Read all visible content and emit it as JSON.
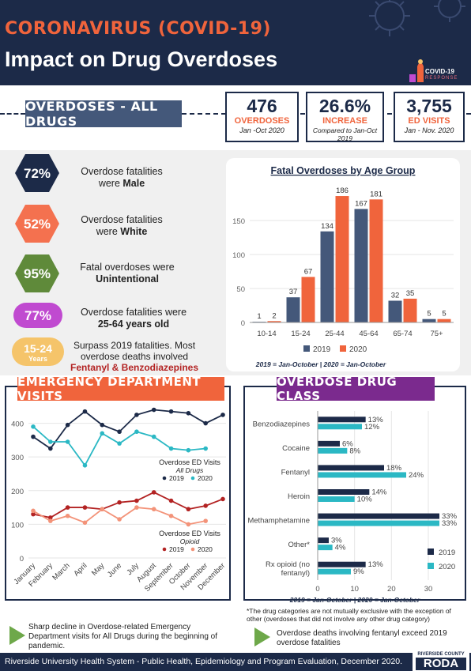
{
  "header": {
    "kicker": "CORONAVIRUS (COVID-19)",
    "title": "Impact on Drug Overdoses",
    "logo_text": "COVID-19",
    "logo_sub": "RESPONSE"
  },
  "summary": {
    "section_label": "OVERDOSES - ALL DRUGS",
    "stats": [
      {
        "value": "476",
        "label": "OVERDOSES",
        "sub": "Jan -Oct 2020"
      },
      {
        "value": "26.6%",
        "label": "INCREASE",
        "sub": "Compared to Jan-Oct 2019"
      },
      {
        "value": "3,755",
        "label": "ED VISITS",
        "sub": "Jan -  Nov. 2020"
      }
    ]
  },
  "facts": [
    {
      "pct": "72%",
      "line1": "Overdose fatalities",
      "line2a": "were ",
      "line2b": "Male",
      "color": "#1c2a48"
    },
    {
      "pct": "52%",
      "line1": "Overdose fatalities",
      "line2a": "were ",
      "line2b": "White",
      "color": "#f4714f"
    },
    {
      "pct": "95%",
      "line1": "Fatal overdoses were",
      "line2a": "",
      "line2b": "Unintentional",
      "color": "#5f8a3a"
    },
    {
      "pct": "77%",
      "line1": "Overdose fatalities were",
      "line2a": "",
      "line2b": "25-64 years old",
      "color": "#c04ad0"
    },
    {
      "pct": "15-24",
      "pct_sub": "Years",
      "line1": "Surpass 2019 fatalities. Most",
      "line2a": "overdose deaths involved",
      "line2b": "Fentanyl & Benzodiazepines",
      "color": "#f5c46a"
    }
  ],
  "age_chart": {
    "title": "Fatal Overdoses by Age Group",
    "note": "2019 = Jan-October | 2020 = Jan-October"
  },
  "ed_section": {
    "label": "EMERGENCY DEPARTMENT VISITS",
    "legend_all_title": "Overdose ED Visits",
    "legend_all_sub": "All Drugs",
    "legend_op_title": "Overdose ED Visits",
    "legend_op_sub": "Opioid",
    "note": "Sharp decline in Overdose-related Emergency Department visits for All Drugs during the beginning of pandemic."
  },
  "drug_section": {
    "label": "OVERDOSE DRUG CLASS",
    "note_line": "2019 = Jan-October | 2020 = Jan-October",
    "footnote": "*The drug categories are not mutually exclusive with the exception of other (overdoses that did not involve any other drug category)",
    "note": "Overdose deaths involving fentanyl exceed 2019 overdose fatalities"
  },
  "footer": {
    "text": "Riverside University Health System - Public Health, Epidemiology and Program Evaluation, December 2020.",
    "logo_top": "RIVERSIDE COUNTY",
    "logo_main": "RODA"
  },
  "colors": {
    "navy": "#1c2a48",
    "slate": "#44587a",
    "orange": "#f0643c",
    "teal": "#2bb8c4",
    "dark_red": "#b32323",
    "salmon": "#f39379",
    "green": "#6ea84a",
    "purple": "#7b2a8e"
  },
  "chart_data": [
    {
      "type": "bar",
      "title": "Fatal Overdoses by Age Group",
      "categories": [
        "10-14",
        "15-24",
        "25-44",
        "45-64",
        "65-74",
        "75+"
      ],
      "series": [
        {
          "name": "2019",
          "values": [
            1,
            37,
            134,
            167,
            32,
            5
          ]
        },
        {
          "name": "2020",
          "values": [
            2,
            67,
            186,
            181,
            35,
            5
          ]
        }
      ],
      "yticks": [
        0,
        50,
        100,
        150
      ],
      "ylim": [
        0,
        200
      ],
      "legend": "bottom"
    },
    {
      "type": "line",
      "categories": [
        "January",
        "February",
        "March",
        "April",
        "May",
        "June",
        "July",
        "August",
        "September",
        "October",
        "November",
        "December"
      ],
      "series": [
        {
          "name": "2019",
          "group": "All Drugs",
          "values": [
            360,
            325,
            395,
            435,
            395,
            375,
            425,
            440,
            435,
            430,
            400,
            425
          ]
        },
        {
          "name": "2020",
          "group": "All Drugs",
          "values": [
            390,
            345,
            345,
            275,
            370,
            340,
            375,
            360,
            325,
            320,
            325,
            null
          ]
        },
        {
          "name": "2019",
          "group": "Opioid",
          "values": [
            130,
            120,
            150,
            150,
            145,
            165,
            170,
            195,
            170,
            145,
            155,
            175
          ]
        },
        {
          "name": "2020",
          "group": "Opioid",
          "values": [
            140,
            110,
            125,
            105,
            145,
            115,
            150,
            145,
            125,
            100,
            110,
            null
          ]
        }
      ],
      "yticks": [
        0,
        100,
        200,
        300,
        400
      ],
      "ylim": [
        0,
        460
      ]
    },
    {
      "type": "bar",
      "orientation": "horizontal",
      "categories": [
        "Benzodiazepines",
        "Cocaine",
        "Fentanyl",
        "Heroin",
        "Methamphetamine",
        "Other*",
        "Rx opioid (no fentanyl)"
      ],
      "series": [
        {
          "name": "2019",
          "values": [
            13,
            6,
            18,
            14,
            33,
            3,
            13
          ],
          "labels": [
            "13%",
            "6%",
            "18%",
            "14%",
            "33%",
            "3%",
            "13%"
          ]
        },
        {
          "name": "2020",
          "values": [
            12,
            8,
            24,
            10,
            33,
            4,
            9
          ],
          "labels": [
            "12%",
            "8%",
            "24%",
            "10%",
            "33%",
            "4%",
            "9%"
          ]
        }
      ],
      "xticks": [
        0,
        10,
        20,
        30
      ],
      "xlim": [
        0,
        33
      ],
      "legend": "right"
    }
  ]
}
